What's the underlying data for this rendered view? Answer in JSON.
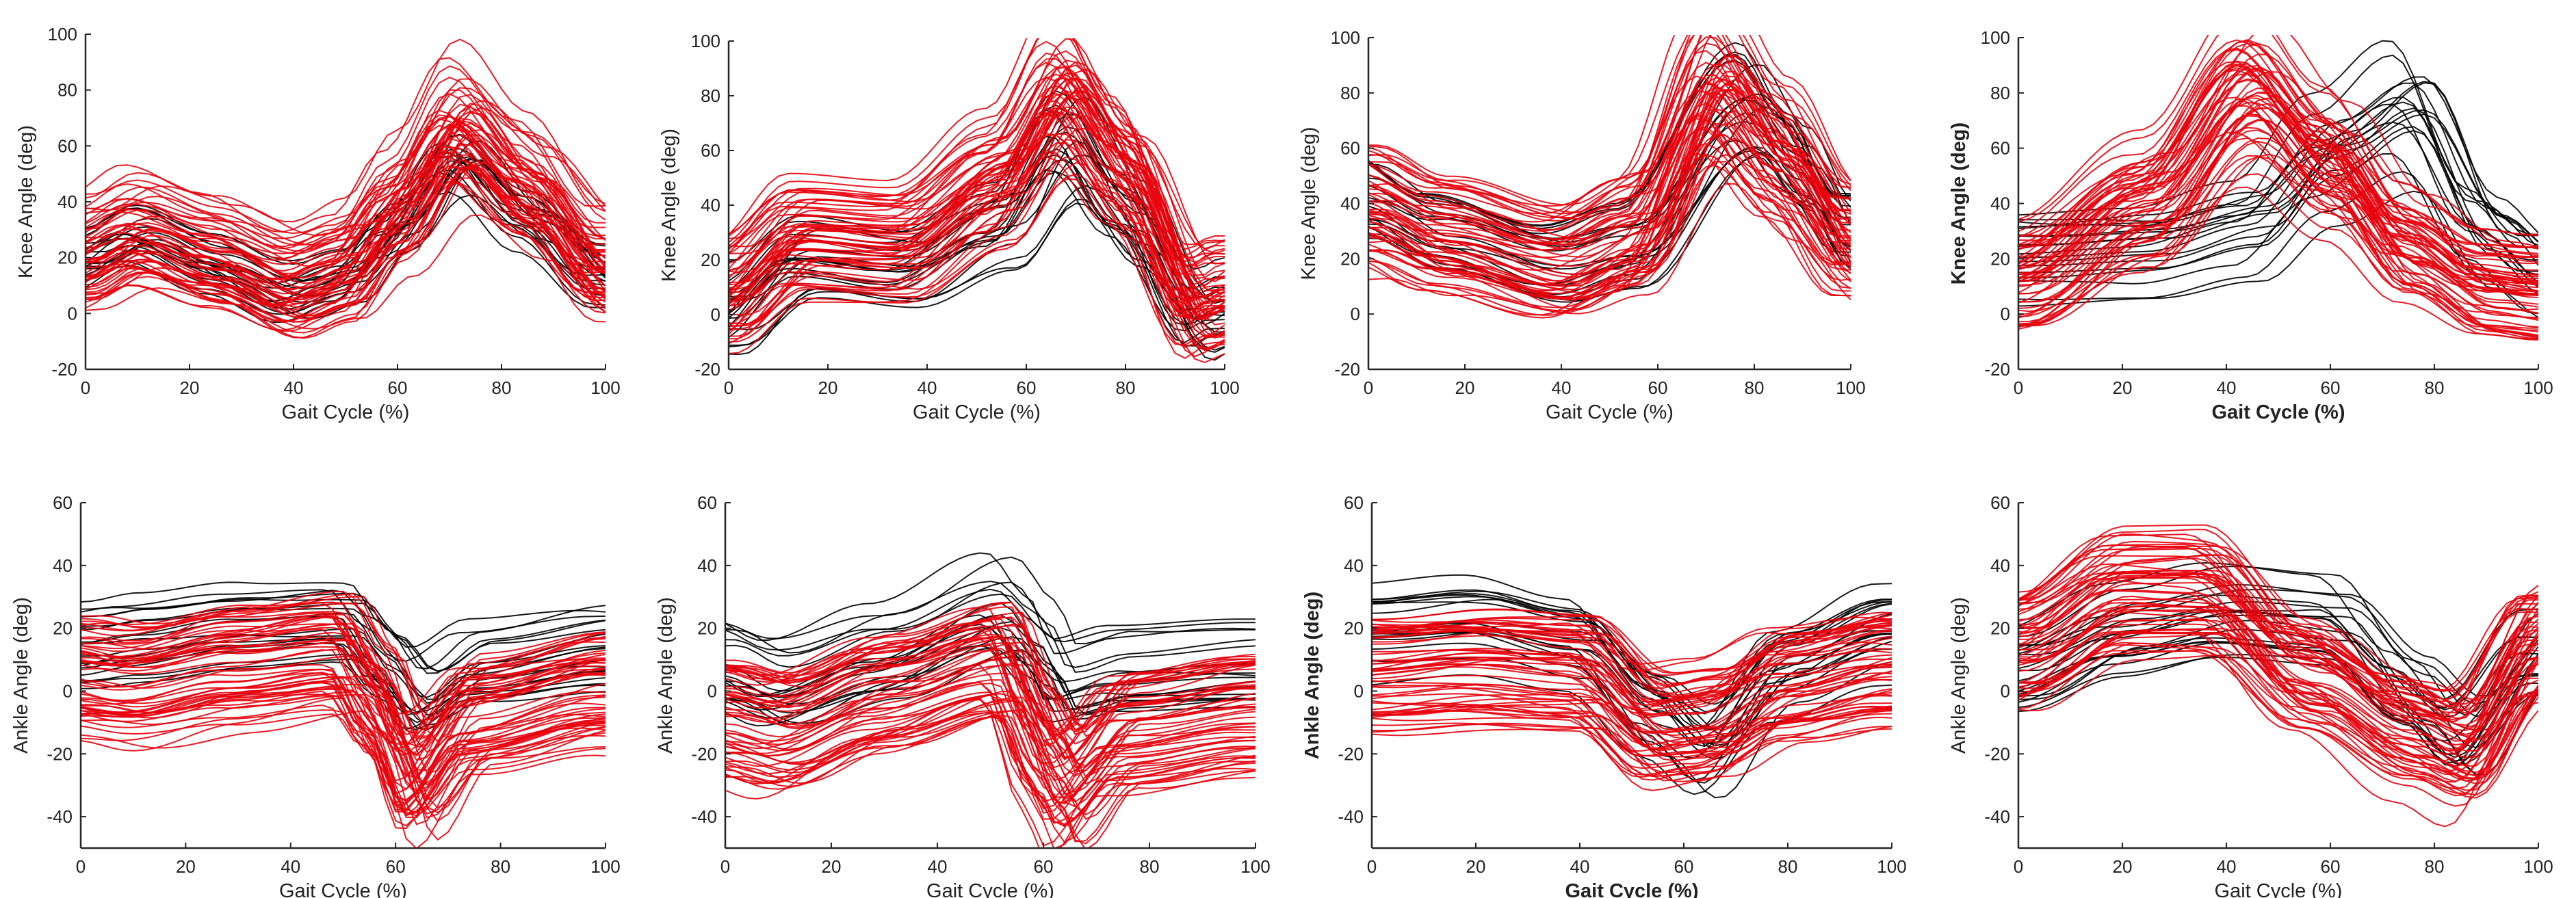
{
  "colors": {
    "black_series": "#000000",
    "red_series": "#e8000b"
  },
  "chart_data": [
    {
      "type": "line",
      "panel": "top-1",
      "xlabel": "Gait Cycle (%)",
      "ylabel": "Knee Angle (deg)",
      "xlim": [
        0,
        100
      ],
      "ylim": [
        -20,
        100
      ],
      "xticks": [
        "0",
        "20",
        "40",
        "60",
        "80",
        "100"
      ],
      "yticks": [
        "-20",
        "0",
        "20",
        "40",
        "60",
        "80",
        "100"
      ],
      "series": [
        {
          "color": "#000000",
          "curves": 18,
          "mean": [
            [
              0,
              16
            ],
            [
              10,
              24
            ],
            [
              25,
              14
            ],
            [
              40,
              4
            ],
            [
              50,
              9
            ],
            [
              60,
              26
            ],
            [
              72,
              50
            ],
            [
              85,
              30
            ],
            [
              100,
              10
            ]
          ]
        },
        {
          "color": "#e8000b",
          "curves": 55,
          "mean": [
            [
              0,
              22
            ],
            [
              10,
              30
            ],
            [
              25,
              22
            ],
            [
              40,
              12
            ],
            [
              50,
              18
            ],
            [
              60,
              38
            ],
            [
              72,
              66
            ],
            [
              85,
              46
            ],
            [
              100,
              18
            ]
          ]
        }
      ]
    },
    {
      "type": "line",
      "panel": "top-2",
      "xlabel": "Gait Cycle (%)",
      "ylabel": "Knee Angle (deg)",
      "xlim": [
        0,
        100
      ],
      "ylim": [
        -20,
        100
      ],
      "xticks": [
        "0",
        "20",
        "40",
        "60",
        "80",
        "100"
      ],
      "yticks": [
        "-20",
        "0",
        "20",
        "40",
        "60",
        "80",
        "100"
      ],
      "series": [
        {
          "color": "#000000",
          "curves": 18,
          "mean": [
            [
              0,
              2
            ],
            [
              15,
              22
            ],
            [
              35,
              18
            ],
            [
              55,
              34
            ],
            [
              68,
              64
            ],
            [
              80,
              38
            ],
            [
              95,
              0
            ],
            [
              100,
              4
            ]
          ]
        },
        {
          "color": "#e8000b",
          "curves": 55,
          "mean": [
            [
              0,
              8
            ],
            [
              15,
              28
            ],
            [
              35,
              26
            ],
            [
              55,
              48
            ],
            [
              68,
              78
            ],
            [
              80,
              52
            ],
            [
              95,
              4
            ],
            [
              100,
              8
            ]
          ]
        }
      ]
    },
    {
      "type": "line",
      "panel": "top-3",
      "xlabel": "Gait Cycle (%)",
      "ylabel": "Knee Angle (deg)",
      "xlim": [
        0,
        100
      ],
      "ylim": [
        -20,
        100
      ],
      "xticks": [
        "0",
        "20",
        "40",
        "60",
        "80",
        "100"
      ],
      "yticks": [
        "-20",
        "0",
        "20",
        "40",
        "60",
        "80",
        "100"
      ],
      "series": [
        {
          "color": "#000000",
          "curves": 18,
          "mean": [
            [
              0,
              40
            ],
            [
              15,
              28
            ],
            [
              40,
              16
            ],
            [
              55,
              22
            ],
            [
              80,
              72
            ],
            [
              90,
              52
            ],
            [
              100,
              28
            ]
          ]
        },
        {
          "color": "#e8000b",
          "curves": 55,
          "mean": [
            [
              0,
              38
            ],
            [
              15,
              28
            ],
            [
              40,
              18
            ],
            [
              55,
              28
            ],
            [
              72,
              80
            ],
            [
              85,
              56
            ],
            [
              100,
              26
            ]
          ]
        }
      ]
    },
    {
      "type": "line",
      "panel": "top-4",
      "xlabel": "Gait Cycle (%)",
      "ylabel": "Knee Angle (deg)",
      "xlim": [
        0,
        100
      ],
      "ylim": [
        -20,
        100
      ],
      "xticks": [
        "0",
        "20",
        "40",
        "60",
        "80",
        "100"
      ],
      "yticks": [
        "-20",
        "0",
        "20",
        "40",
        "60",
        "80",
        "100"
      ],
      "series": [
        {
          "color": "#000000",
          "curves": 18,
          "mean": [
            [
              0,
              20
            ],
            [
              25,
              22
            ],
            [
              45,
              30
            ],
            [
              60,
              56
            ],
            [
              75,
              72
            ],
            [
              90,
              28
            ],
            [
              100,
              14
            ]
          ]
        },
        {
          "color": "#e8000b",
          "curves": 55,
          "mean": [
            [
              0,
              14
            ],
            [
              25,
              40
            ],
            [
              45,
              78
            ],
            [
              60,
              54
            ],
            [
              75,
              26
            ],
            [
              90,
              12
            ],
            [
              100,
              10
            ]
          ]
        }
      ]
    },
    {
      "type": "line",
      "panel": "bottom-1",
      "xlabel": "Gait Cycle (%)",
      "ylabel": "Ankle Angle (deg)",
      "xlim": [
        0,
        100
      ],
      "ylim": [
        -50,
        60
      ],
      "xticks": [
        "0",
        "20",
        "40",
        "60",
        "80",
        "100"
      ],
      "yticks": [
        "-40",
        "-20",
        "0",
        "20",
        "40",
        "60"
      ],
      "series": [
        {
          "color": "#000000",
          "curves": 18,
          "mean": [
            [
              0,
              14
            ],
            [
              10,
              16
            ],
            [
              30,
              20
            ],
            [
              50,
              22
            ],
            [
              57,
              10
            ],
            [
              64,
              -2
            ],
            [
              75,
              8
            ],
            [
              100,
              13
            ]
          ]
        },
        {
          "color": "#e8000b",
          "curves": 55,
          "mean": [
            [
              0,
              4
            ],
            [
              10,
              2
            ],
            [
              30,
              8
            ],
            [
              50,
              12
            ],
            [
              57,
              -4
            ],
            [
              64,
              -28
            ],
            [
              75,
              -8
            ],
            [
              100,
              0
            ]
          ]
        }
      ]
    },
    {
      "type": "line",
      "panel": "bottom-2",
      "xlabel": "Gait Cycle (%)",
      "ylabel": "Ankle Angle (deg)",
      "xlim": [
        0,
        100
      ],
      "ylim": [
        -50,
        60
      ],
      "xticks": [
        "0",
        "20",
        "40",
        "60",
        "80",
        "100"
      ],
      "yticks": [
        "-40",
        "-20",
        "0",
        "20",
        "40",
        "60"
      ],
      "series": [
        {
          "color": "#000000",
          "curves": 18,
          "mean": [
            [
              0,
              8
            ],
            [
              10,
              2
            ],
            [
              30,
              12
            ],
            [
              52,
              26
            ],
            [
              60,
              14
            ],
            [
              64,
              2
            ],
            [
              75,
              6
            ],
            [
              100,
              8
            ]
          ]
        },
        {
          "color": "#e8000b",
          "curves": 55,
          "mean": [
            [
              0,
              -8
            ],
            [
              10,
              -12
            ],
            [
              30,
              0
            ],
            [
              52,
              10
            ],
            [
              60,
              -18
            ],
            [
              64,
              -30
            ],
            [
              75,
              -12
            ],
            [
              100,
              -6
            ]
          ]
        }
      ]
    },
    {
      "type": "line",
      "panel": "bottom-3",
      "xlabel": "Gait Cycle (%)",
      "ylabel": "Ankle Angle (deg)",
      "xlim": [
        0,
        100
      ],
      "ylim": [
        -50,
        60
      ],
      "xticks": [
        "0",
        "20",
        "40",
        "60",
        "80",
        "100"
      ],
      "yticks": [
        "-40",
        "-20",
        "0",
        "20",
        "40",
        "60"
      ],
      "series": [
        {
          "color": "#000000",
          "curves": 18,
          "mean": [
            [
              0,
              18
            ],
            [
              20,
              20
            ],
            [
              40,
              14
            ],
            [
              55,
              -8
            ],
            [
              65,
              -20
            ],
            [
              80,
              6
            ],
            [
              100,
              18
            ]
          ]
        },
        {
          "color": "#e8000b",
          "curves": 55,
          "mean": [
            [
              0,
              6
            ],
            [
              20,
              8
            ],
            [
              40,
              6
            ],
            [
              55,
              -12
            ],
            [
              65,
              -10
            ],
            [
              80,
              2
            ],
            [
              100,
              8
            ]
          ]
        }
      ]
    },
    {
      "type": "line",
      "panel": "bottom-4",
      "xlabel": "Gait Cycle (%)",
      "ylabel": "Ankle Angle (deg)",
      "xlim": [
        0,
        100
      ],
      "ylim": [
        -50,
        60
      ],
      "xticks": [
        "0",
        "20",
        "40",
        "60",
        "80",
        "100"
      ],
      "yticks": [
        "-40",
        "-20",
        "0",
        "20",
        "40",
        "60"
      ],
      "series": [
        {
          "color": "#000000",
          "curves": 18,
          "mean": [
            [
              0,
              6
            ],
            [
              20,
              18
            ],
            [
              40,
              24
            ],
            [
              60,
              22
            ],
            [
              75,
              0
            ],
            [
              85,
              -14
            ],
            [
              100,
              12
            ]
          ]
        },
        {
          "color": "#e8000b",
          "curves": 55,
          "mean": [
            [
              0,
              12
            ],
            [
              20,
              30
            ],
            [
              35,
              30
            ],
            [
              55,
              4
            ],
            [
              75,
              -14
            ],
            [
              85,
              -20
            ],
            [
              100,
              14
            ]
          ]
        }
      ]
    }
  ]
}
